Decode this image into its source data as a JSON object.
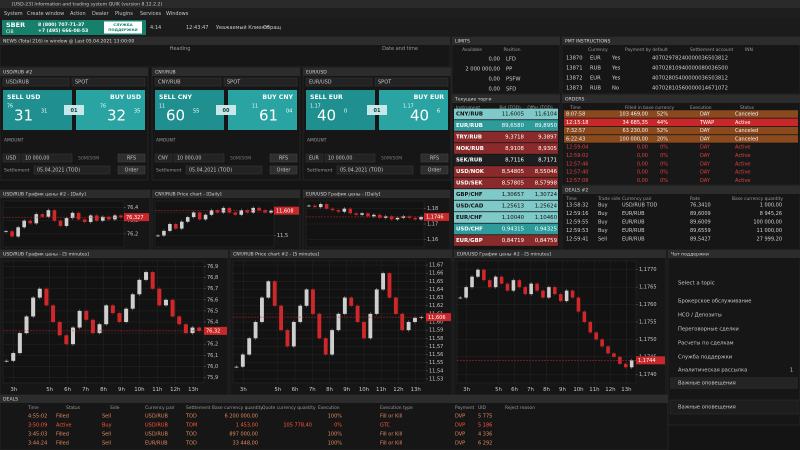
{
  "title_bar": "[USD-23] Information and trading system QUIK (version 8.12.2.2)",
  "menu": [
    "System",
    "Create window",
    "Action",
    "Dealer",
    "Plugins",
    "Services",
    "Windows"
  ],
  "toolbar": {
    "logo": "SBER",
    "logo_sub": "CIB",
    "phones": [
      "8 (800) 707-71-37",
      "+7 (495) 666-08-53"
    ],
    "support": [
      "СЛУЖБА",
      "ПОДДЕРЖКИ"
    ],
    "items": [
      "4:14",
      "12:43:47",
      "Уважаемый Клиент!",
      "Обращ"
    ]
  },
  "news": {
    "title": "NEWS (Total 216) in window @ Last 05.04.2021 13:00:00",
    "columns": [
      "Heading",
      "Date and time"
    ]
  },
  "limits": {
    "title": "LIMITS",
    "columns": [
      "Available",
      "Position"
    ],
    "rows": [
      [
        "0,00",
        "LFD"
      ],
      [
        "2 000 000,00",
        "PP"
      ],
      [
        "0,00",
        "PSFW"
      ],
      [
        "0,00",
        "SFD"
      ]
    ]
  },
  "pmt": {
    "title": "PMT INSTRUCTIONS",
    "columns": [
      "Currency",
      "Payment by default",
      "Settlement account",
      "INN"
    ],
    "rows": [
      [
        "13870",
        "EUR",
        "Yes",
        "40702978240000036503812"
      ],
      [
        "13871",
        "RUB",
        "Yes",
        "40702810940000080036500"
      ],
      [
        "13872",
        "EUR",
        "Yes",
        "40702805400000036503812"
      ],
      [
        "13873",
        "RUB",
        "No",
        "40702810560000014671072"
      ]
    ]
  },
  "tickets": [
    {
      "header": "USD/RUB #2",
      "pair": "USD/RUB",
      "tenor": "SPOT",
      "sell_label": "SELL USD",
      "sell_pre": "76",
      "sell_big": "31",
      "sell_small": "31",
      "spread": "01",
      "buy_label": "BUY USD",
      "buy_pre": "76",
      "buy_big": "32",
      "buy_small": "35",
      "amount_label": "AMOUNT",
      "currency": "USD",
      "amount": "10 000,00",
      "mode": "50M/50M",
      "rfs": "RFS",
      "settlement_label": "Settlement",
      "date": "05.04.2021 (TOD)",
      "order": "Order"
    },
    {
      "header": "CNY/RUB",
      "pair": "CNY/RUB",
      "tenor": "SPOT",
      "sell_label": "SELL CNY",
      "sell_pre": "11",
      "sell_big": "60",
      "sell_small": "55",
      "spread": "00",
      "buy_label": "BUY CNY",
      "buy_pre": "11",
      "buy_big": "61",
      "buy_small": "04",
      "amount_label": "AMOUNT",
      "currency": "CNY",
      "amount": "10 000,00",
      "mode": "50M/50M",
      "rfs": "RFS",
      "settlement_label": "Settlement",
      "date": "05.04.2021 (TOD)",
      "order": "Order"
    },
    {
      "header": "EUR/USD",
      "pair": "EUR/USD",
      "tenor": "SPOT",
      "sell_label": "SELL EUR",
      "sell_pre": "1.17",
      "sell_big": "40",
      "sell_small": "0",
      "spread": "01",
      "buy_label": "BUY EUR",
      "buy_pre": "1.17",
      "buy_big": "40",
      "buy_small": "6",
      "amount_label": "AMOUNT",
      "currency": "EUR",
      "amount": "10 000,00",
      "mode": "50M/50M",
      "rfs": "RFS",
      "settlement_label": "Settlement",
      "date": "05.04.2021 (TOD)",
      "order": "Order"
    }
  ],
  "quotes": {
    "title": "Текущие торги",
    "columns": [
      "Instrument",
      "Bid (TOD)",
      "Offer (TOD)"
    ],
    "rows": [
      [
        "CNY/RUB",
        "11,6005",
        "11,6104"
      ],
      [
        "EUR/RUB",
        "89,6580",
        "89,8950"
      ],
      [
        "TRY/RUB",
        "9,3718",
        "9,3897"
      ],
      [
        "NOK/RUB",
        "8,9108",
        "8,9305"
      ],
      [
        "SEK/RUB",
        "8,7116",
        "8,7171"
      ],
      [
        "USD/NOK",
        "8,54805",
        "8,55046"
      ],
      [
        "USD/SEK",
        "8,57805",
        "8,57998"
      ],
      [
        "GBP/CHF",
        "1,30657",
        "1,30724"
      ],
      [
        "USD/CAD",
        "1,25613",
        "1,25624"
      ],
      [
        "EUR/CHF",
        "1,10040",
        "1,10460"
      ],
      [
        "USD/CHF",
        "0,94315",
        "0,94325"
      ],
      [
        "EUR/GBP",
        "0,84719",
        "0,84759"
      ]
    ],
    "row_colors": [
      "#7fc9c9",
      "#2e9a9a",
      "#8a2a2a",
      "#8a2a2a",
      "#1e1e1e",
      "#8a2a2a",
      "#8a2a2a",
      "#7fc9c9",
      "#7fc9c9",
      "#7fc9c9",
      "#2e9a9a",
      "#8a2a2a"
    ],
    "text_colors": [
      "#101010",
      "#ffffff",
      "#ffffff",
      "#ffffff",
      "#ffffff",
      "#ffffff",
      "#ffffff",
      "#101010",
      "#101010",
      "#101010",
      "#ffffff",
      "#ffffff"
    ]
  },
  "orders": {
    "title": "ORDERS",
    "columns": [
      "Time",
      "Filled in base currency",
      "Execution",
      "Status"
    ],
    "rows": [
      [
        "8:07:58",
        "103 469,00",
        "52%",
        "DAY",
        "Canceled"
      ],
      [
        "12:15:18",
        "34 685,35",
        "44%",
        "TWAP",
        "Active"
      ],
      [
        "7:32:57",
        "63 230,00",
        "52%",
        "DAY",
        "Canceled"
      ],
      [
        "6:22:43",
        "100 000,00",
        "20%",
        "DAY",
        "Canceled"
      ],
      [
        "12:59:04",
        "0,00",
        "0%",
        "DAY",
        "Active"
      ],
      [
        "12:59:02",
        "0,00",
        "0%",
        "DAY",
        "Active"
      ],
      [
        "12:57:46",
        "0,00",
        "0%",
        "DAY",
        "Active"
      ],
      [
        "12:57:40",
        "0,00",
        "0%",
        "DAY",
        "Active"
      ],
      [
        "12:57:08",
        "0,00",
        "0%",
        "DAY",
        "Active"
      ]
    ],
    "row_colors": [
      "#8a4a1e",
      "#c8282a",
      "#8a4a1e",
      "#8a4a1e",
      "#181818",
      "#181818",
      "#181818",
      "#181818",
      "#181818"
    ],
    "text_colors": [
      "#f0f0f0",
      "#ffffff",
      "#f0f0f0",
      "#f0f0f0",
      "#e04040",
      "#e04040",
      "#e04040",
      "#e04040",
      "#e04040"
    ]
  },
  "trades": {
    "title": "DEALS #2",
    "columns": [
      "Time",
      "Trade side",
      "Currency pair",
      "Rate",
      "Base currency quantity"
    ],
    "rows": [
      [
        "13:58:32",
        "Buy",
        "USD/RUB TOD",
        "76,3410",
        "1 000,00"
      ],
      [
        "12:59:16",
        "Buy",
        "EUR/RUB",
        "89,6009",
        "8 945,26"
      ],
      [
        "12:59:55",
        "Buy",
        "EUR/RUB",
        "89,6009",
        "100 000,00"
      ],
      [
        "12:59:53",
        "Buy",
        "EUR/RUB",
        "89,6559",
        "11 000,00"
      ],
      [
        "12:59:41",
        "Sell",
        "EUR/RUB",
        "89,5427",
        "27 999,20"
      ]
    ]
  },
  "chat": {
    "title": "Чат поддержки",
    "prompt": "Select a topic",
    "items": [
      "Брокерское обслуживание",
      "НСО / Депозиты",
      "Переговорные сделки",
      "Расчеты по сделкам",
      "Служба поддержки",
      "Аналитическая рассылка",
      "Важные оповещения"
    ],
    "badge": "1",
    "footer": "Важные оповещения"
  },
  "deals": {
    "title": "DEALS",
    "columns": [
      "Time",
      "Status",
      "Side",
      "Currency pair",
      "Settlement",
      "Base currency quantity",
      "Quote currency quantity",
      "Execution",
      "Execution type",
      "Payment",
      "UID",
      "Reject reason"
    ],
    "rows": [
      [
        "4:55:02",
        "Filled",
        "Sell",
        "USD/RUB",
        "TOD",
        "6 200 000,00",
        "",
        "100%",
        "Fill or Kill",
        "DVP",
        "5 775"
      ],
      [
        "3:50:09",
        "Active",
        "Buy",
        "USD/RUB",
        "TOM",
        "1 453,00",
        "105 778,40",
        "0%",
        "GTC",
        "DVP",
        "5 186"
      ],
      [
        "3:45:03",
        "Filled",
        "Sell",
        "USD/RUB",
        "TOD",
        "897 000,00",
        "",
        "100%",
        "Fill or Kill",
        "DVP",
        "4 336"
      ],
      [
        "3:44:24",
        "Filled",
        "Sell",
        "EUR/RUB",
        "TOD",
        "33 448,00",
        "",
        "100%",
        "Fill or Kill",
        "DVP",
        "6 292"
      ]
    ],
    "text_colors": [
      "#e08a60",
      "#ff5a3a",
      "#e08a60",
      "#e08a60"
    ]
  },
  "chart_data": [
    {
      "type": "candlestick",
      "title": "USD/RUB График цены #2 - [Daily]",
      "up_color": "#cfcfcf",
      "down_color": "#d0282a",
      "grid": true,
      "values": [
        76.22,
        76.18,
        76.25,
        76.3,
        76.28,
        76.35,
        76.33,
        76.38,
        76.3,
        76.26,
        76.32,
        76.36,
        76.31,
        76.29,
        76.34,
        76.3,
        76.33,
        76.31,
        76.34,
        76.327
      ],
      "ylim": [
        76.1,
        76.45
      ],
      "yticks": [
        {
          "value": 76.4,
          "label": "76,4"
        },
        {
          "value": 76.3,
          "label": "76,3"
        },
        {
          "value": 76.2,
          "label": "76,2"
        }
      ],
      "last": {
        "value": 76.327,
        "label": "76,327"
      }
    },
    {
      "type": "candlestick",
      "title": "CNY/RUB Price chart - [Daily]",
      "up_color": "#cfcfcf",
      "down_color": "#d0282a",
      "grid": true,
      "values": [
        11.5,
        11.52,
        11.55,
        11.53,
        11.56,
        11.58,
        11.6,
        11.57,
        11.59,
        11.61,
        11.6,
        11.62,
        11.6,
        11.59,
        11.61,
        11.6,
        11.62,
        11.61,
        11.6,
        11.608
      ],
      "ylim": [
        11.45,
        11.65
      ],
      "yticks": [
        {
          "value": 11.6,
          "label": "11,6"
        },
        {
          "value": 11.5,
          "label": "11,5"
        }
      ],
      "last": {
        "value": 11.608,
        "label": "11,608"
      }
    },
    {
      "type": "candlestick",
      "title": "EUR/USD График цены - [Daily]",
      "up_color": "#cfcfcf",
      "down_color": "#d0282a",
      "grid": true,
      "values": [
        1.182,
        1.181,
        1.183,
        1.18,
        1.179,
        1.178,
        1.18,
        1.177,
        1.176,
        1.177,
        1.175,
        1.176,
        1.174,
        1.175,
        1.173,
        1.174,
        1.175,
        1.174,
        1.173,
        1.1746
      ],
      "ylim": [
        1.155,
        1.185
      ],
      "yticks": [
        {
          "value": 1.18,
          "label": "1,18"
        },
        {
          "value": 1.17,
          "label": "1,17"
        },
        {
          "value": 1.16,
          "label": "1,16"
        }
      ],
      "last": {
        "value": 1.1746,
        "label": "1,1746"
      }
    },
    {
      "type": "candlestick",
      "title": "USD/RUB График цены - [5 minutes]",
      "up_color": "#cfcfcf",
      "down_color": "#d0282a",
      "grid": true,
      "x": [
        2.6,
        2.97,
        3.34,
        3.71,
        4.08,
        4.45,
        4.82,
        5.19,
        5.56,
        5.93,
        6.3,
        6.67,
        7.04,
        7.41,
        7.78,
        8.15,
        8.52,
        8.89,
        9.26,
        9.63,
        10,
        10.37,
        10.74,
        11.11,
        11.48,
        11.85,
        12.22,
        12.59,
        12.96,
        13.33
      ],
      "values": [
        76.05,
        76.12,
        76.3,
        76.45,
        76.62,
        76.7,
        76.55,
        76.4,
        76.28,
        76.2,
        76.35,
        76.5,
        76.42,
        76.3,
        76.38,
        76.55,
        76.48,
        76.4,
        76.52,
        76.65,
        76.78,
        76.85,
        76.7,
        76.55,
        76.6,
        76.45,
        76.38,
        76.3,
        76.35,
        76.32
      ],
      "xlim": [
        2.4,
        13.6
      ],
      "xticks": [
        {
          "value": 3,
          "label": "3h"
        },
        {
          "value": 5,
          "label": "5h"
        },
        {
          "value": 6,
          "label": "6h"
        },
        {
          "value": 7,
          "label": "7h"
        },
        {
          "value": 8,
          "label": "8h"
        },
        {
          "value": 9,
          "label": "9h"
        },
        {
          "value": 10,
          "label": "10h"
        },
        {
          "value": 11,
          "label": "11h"
        },
        {
          "value": 12,
          "label": "12h"
        },
        {
          "value": 13,
          "label": "13h"
        }
      ],
      "ylim": [
        75.85,
        76.95
      ],
      "yticks": [
        {
          "value": 76.9,
          "label": "76,9"
        },
        {
          "value": 76.8,
          "label": "76,8"
        },
        {
          "value": 76.7,
          "label": "76,7"
        },
        {
          "value": 76.6,
          "label": "76,6"
        },
        {
          "value": 76.5,
          "label": "76,5"
        },
        {
          "value": 76.4,
          "label": "76,4"
        },
        {
          "value": 76.3,
          "label": "76,3"
        },
        {
          "value": 76.2,
          "label": "76,2"
        },
        {
          "value": 76.1,
          "label": "76,1"
        },
        {
          "value": 76,
          "label": "76,0"
        },
        {
          "value": 75.9,
          "label": "75,9"
        }
      ],
      "last": {
        "value": 76.32,
        "label": "76,32"
      }
    },
    {
      "type": "candlestick",
      "title": "CNY/RUB Price chart #2 - [5 minutes]",
      "up_color": "#cfcfcf",
      "down_color": "#d0282a",
      "grid": true,
      "x": [
        2.6,
        2.97,
        3.34,
        3.71,
        4.08,
        4.45,
        4.82,
        5.19,
        5.56,
        5.93,
        6.3,
        6.67,
        7.04,
        7.41,
        7.78,
        8.15,
        8.52,
        8.89,
        9.26,
        9.63,
        10,
        10.37,
        10.74,
        11.11,
        11.48,
        11.85,
        12.22,
        12.59,
        12.96,
        13.33
      ],
      "values": [
        11.545,
        11.56,
        11.58,
        11.6,
        11.63,
        11.65,
        11.62,
        11.59,
        11.57,
        11.6,
        11.62,
        11.64,
        11.61,
        11.58,
        11.56,
        11.59,
        11.61,
        11.63,
        11.62,
        11.6,
        11.58,
        11.61,
        11.64,
        11.66,
        11.63,
        11.61,
        11.59,
        11.6,
        11.605,
        11.606
      ],
      "xlim": [
        2.4,
        13.6
      ],
      "xticks": [
        {
          "value": 3,
          "label": "3h"
        },
        {
          "value": 5,
          "label": "5h"
        },
        {
          "value": 6,
          "label": "6h"
        },
        {
          "value": 7,
          "label": "7h"
        },
        {
          "value": 8,
          "label": "8h"
        },
        {
          "value": 9,
          "label": "9h"
        },
        {
          "value": 10,
          "label": "10h"
        },
        {
          "value": 11,
          "label": "11h"
        },
        {
          "value": 12,
          "label": "12h"
        },
        {
          "value": 13,
          "label": "13h"
        }
      ],
      "ylim": [
        11.525,
        11.675
      ],
      "yticks": [
        {
          "value": 11.67,
          "label": "11,67"
        },
        {
          "value": 11.66,
          "label": "11,66"
        },
        {
          "value": 11.65,
          "label": "11,65"
        },
        {
          "value": 11.64,
          "label": "11,64"
        },
        {
          "value": 11.63,
          "label": "11,63"
        },
        {
          "value": 11.62,
          "label": "11,62"
        },
        {
          "value": 11.61,
          "label": "11,61"
        },
        {
          "value": 11.6,
          "label": "11,60"
        },
        {
          "value": 11.59,
          "label": "11,59"
        },
        {
          "value": 11.58,
          "label": "11,58"
        },
        {
          "value": 11.57,
          "label": "11,57"
        },
        {
          "value": 11.56,
          "label": "11,56"
        },
        {
          "value": 11.55,
          "label": "11,55"
        },
        {
          "value": 11.54,
          "label": "11,54"
        },
        {
          "value": 11.53,
          "label": "11,53"
        }
      ],
      "last": {
        "value": 11.606,
        "label": "11,606"
      }
    },
    {
      "type": "candlestick",
      "title": "EUR/USD График цены #2 - [5 minutes]",
      "up_color": "#cfcfcf",
      "down_color": "#d0282a",
      "grid": true,
      "x": [
        2.6,
        2.97,
        3.34,
        3.71,
        4.08,
        4.45,
        4.82,
        5.19,
        5.56,
        5.93,
        6.3,
        6.67,
        7.04,
        7.41,
        7.78,
        8.15,
        8.52,
        8.89,
        9.26,
        9.63,
        10,
        10.37,
        10.74,
        11.11,
        11.48,
        11.85,
        12.22,
        12.59,
        12.96,
        13.33
      ],
      "values": [
        1.1762,
        1.1765,
        1.1768,
        1.177,
        1.1767,
        1.1765,
        1.1768,
        1.1766,
        1.1764,
        1.1767,
        1.1765,
        1.1763,
        1.1766,
        1.1764,
        1.1762,
        1.1765,
        1.1763,
        1.1761,
        1.1764,
        1.1762,
        1.1758,
        1.1755,
        1.1752,
        1.175,
        1.1748,
        1.1746,
        1.1745,
        1.1743,
        1.1742,
        1.1744
      ],
      "xlim": [
        2.4,
        13.6
      ],
      "xticks": [
        {
          "value": 3,
          "label": "3h"
        },
        {
          "value": 5,
          "label": "5h"
        },
        {
          "value": 6,
          "label": "6h"
        },
        {
          "value": 7,
          "label": "7h"
        },
        {
          "value": 8,
          "label": "8h"
        },
        {
          "value": 9,
          "label": "9h"
        },
        {
          "value": 10,
          "label": "10h"
        },
        {
          "value": 11,
          "label": "11h"
        },
        {
          "value": 12,
          "label": "12h"
        },
        {
          "value": 13,
          "label": "13h"
        }
      ],
      "ylim": [
        1.17375,
        1.17725
      ],
      "yticks": [
        {
          "value": 1.177,
          "label": "1,1770"
        },
        {
          "value": 1.1765,
          "label": "1,1765"
        },
        {
          "value": 1.176,
          "label": "1,1760"
        },
        {
          "value": 1.1755,
          "label": "1,1755"
        },
        {
          "value": 1.175,
          "label": "1,1750"
        },
        {
          "value": 1.1745,
          "label": "1,1745"
        },
        {
          "value": 1.174,
          "label": "1,1740"
        }
      ],
      "last": {
        "value": 1.1744,
        "label": "1,1744"
      }
    }
  ]
}
